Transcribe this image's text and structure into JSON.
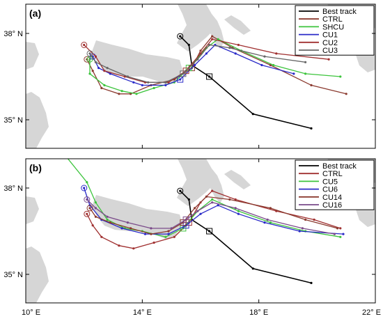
{
  "map": {
    "lon_range": [
      10,
      22
    ],
    "lat_range_approx": [
      33.3,
      39.6
    ],
    "x_ticks": [
      {
        "lon": 10,
        "label": "10° E"
      },
      {
        "lon": 14,
        "label": "14° E"
      },
      {
        "lon": 18,
        "label": "18° E"
      },
      {
        "lon": 22,
        "label": "22° E"
      }
    ],
    "y_ticks": [
      {
        "lat": 35,
        "label": "35° N"
      },
      {
        "lat": 38,
        "label": "38° N"
      }
    ],
    "land_color": "#d6d6d6"
  },
  "panels": [
    {
      "label": "(a)",
      "legend": [
        {
          "name": "Best track",
          "color": "#000000"
        },
        {
          "name": "CTRL",
          "color": "#8b3a2f"
        },
        {
          "name": "SHCU",
          "color": "#3cc43c"
        },
        {
          "name": "CU1",
          "color": "#2a2ac8"
        },
        {
          "name": "CU2",
          "color": "#a03030"
        },
        {
          "name": "CU3",
          "color": "#666666"
        }
      ],
      "tracks": [
        {
          "name": "Best track",
          "color": "#000000",
          "points": [
            [
              15.3,
              37.9
            ],
            [
              15.6,
              37.6
            ],
            [
              15.7,
              36.9
            ],
            [
              16.3,
              36.5
            ],
            [
              17.8,
              35.2
            ],
            [
              19.8,
              34.7
            ]
          ]
        },
        {
          "name": "CTRL",
          "color": "#8b3a2f",
          "points": [
            [
              12.1,
              37.1
            ],
            [
              12.3,
              36.7
            ],
            [
              12.6,
              36.1
            ],
            [
              13.2,
              35.9
            ],
            [
              13.6,
              35.9
            ],
            [
              14.3,
              36.2
            ],
            [
              15.1,
              36.4
            ],
            [
              15.7,
              36.8
            ],
            [
              16.0,
              37.4
            ],
            [
              16.4,
              37.9
            ],
            [
              17.1,
              37.5
            ],
            [
              18.4,
              36.9
            ],
            [
              19.8,
              36.2
            ],
            [
              21.0,
              35.9
            ]
          ]
        },
        {
          "name": "SHCU",
          "color": "#3cc43c",
          "points": [
            [
              12.2,
              37.1
            ],
            [
              12.2,
              36.6
            ],
            [
              12.7,
              36.2
            ],
            [
              13.3,
              36.0
            ],
            [
              13.8,
              35.9
            ],
            [
              14.4,
              36.1
            ],
            [
              15.1,
              36.3
            ],
            [
              15.6,
              36.8
            ],
            [
              16.2,
              37.5
            ],
            [
              16.6,
              37.8
            ],
            [
              17.4,
              37.4
            ],
            [
              18.5,
              36.9
            ],
            [
              19.6,
              36.6
            ],
            [
              20.8,
              36.5
            ]
          ]
        },
        {
          "name": "CU1",
          "color": "#2a2ac8",
          "points": [
            [
              12.3,
              37.2
            ],
            [
              12.5,
              36.8
            ],
            [
              12.9,
              36.6
            ],
            [
              13.7,
              36.3
            ],
            [
              14.0,
              36.2
            ],
            [
              14.8,
              36.2
            ],
            [
              15.3,
              36.4
            ],
            [
              15.8,
              36.9
            ],
            [
              16.2,
              37.3
            ],
            [
              16.5,
              37.6
            ],
            [
              17.2,
              37.3
            ],
            [
              18.1,
              36.9
            ],
            [
              19.2,
              36.6
            ]
          ]
        },
        {
          "name": "CU2",
          "color": "#a03030",
          "points": [
            [
              12.0,
              37.6
            ],
            [
              12.4,
              37.2
            ],
            [
              12.7,
              36.7
            ],
            [
              13.4,
              36.5
            ],
            [
              14.1,
              36.3
            ],
            [
              14.9,
              36.3
            ],
            [
              15.5,
              36.7
            ],
            [
              16.0,
              37.3
            ],
            [
              16.4,
              37.8
            ],
            [
              17.3,
              37.6
            ],
            [
              18.6,
              37.3
            ],
            [
              20.4,
              37.1
            ]
          ]
        },
        {
          "name": "CU3",
          "color": "#666666",
          "points": [
            [
              12.2,
              37.3
            ],
            [
              12.4,
              37.0
            ],
            [
              12.8,
              36.8
            ],
            [
              13.5,
              36.5
            ],
            [
              14.2,
              36.3
            ],
            [
              14.8,
              36.3
            ],
            [
              15.4,
              36.6
            ],
            [
              15.9,
              37.1
            ],
            [
              16.3,
              37.6
            ],
            [
              17.0,
              37.5
            ],
            [
              18.2,
              37.2
            ],
            [
              19.6,
              37.0
            ]
          ]
        }
      ]
    },
    {
      "label": "(b)",
      "legend": [
        {
          "name": "Best track",
          "color": "#000000"
        },
        {
          "name": "CTRL",
          "color": "#a03030"
        },
        {
          "name": "CU5",
          "color": "#3cc43c"
        },
        {
          "name": "CU6",
          "color": "#2a2ac8"
        },
        {
          "name": "CU14",
          "color": "#8b3a2f"
        },
        {
          "name": "CU16",
          "color": "#7a4a8a"
        }
      ],
      "tracks": [
        {
          "name": "Best track",
          "color": "#000000",
          "points": [
            [
              15.3,
              37.9
            ],
            [
              15.6,
              37.6
            ],
            [
              15.7,
              36.9
            ],
            [
              16.3,
              36.5
            ],
            [
              17.8,
              35.2
            ],
            [
              19.8,
              34.7
            ]
          ]
        },
        {
          "name": "CTRL",
          "color": "#a03030",
          "points": [
            [
              12.1,
              37.1
            ],
            [
              12.3,
              36.7
            ],
            [
              12.6,
              36.3
            ],
            [
              13.2,
              36.0
            ],
            [
              13.7,
              35.9
            ],
            [
              14.4,
              36.1
            ],
            [
              15.1,
              36.3
            ],
            [
              15.6,
              36.8
            ],
            [
              16.0,
              37.5
            ],
            [
              16.4,
              37.9
            ],
            [
              17.2,
              37.6
            ],
            [
              18.6,
              37.2
            ],
            [
              19.9,
              36.9
            ],
            [
              20.8,
              36.6
            ]
          ]
        },
        {
          "name": "CU5",
          "color": "#3cc43c",
          "points": [
            [
              11.3,
              39.2
            ],
            [
              12.1,
              38.2
            ],
            [
              12.4,
              37.5
            ],
            [
              12.8,
              36.9
            ],
            [
              13.4,
              36.6
            ],
            [
              14.0,
              36.5
            ],
            [
              14.8,
              36.3
            ],
            [
              15.4,
              36.6
            ],
            [
              15.9,
              37.2
            ],
            [
              16.4,
              37.6
            ],
            [
              17.3,
              37.2
            ],
            [
              18.4,
              36.8
            ],
            [
              19.6,
              36.5
            ],
            [
              20.8,
              36.3
            ]
          ]
        },
        {
          "name": "CU6",
          "color": "#2a2ac8",
          "points": [
            [
              12.0,
              38.0
            ],
            [
              12.2,
              37.4
            ],
            [
              12.6,
              36.9
            ],
            [
              13.3,
              36.6
            ],
            [
              14.1,
              36.4
            ],
            [
              14.9,
              36.4
            ],
            [
              15.5,
              36.7
            ],
            [
              16.0,
              37.1
            ],
            [
              16.6,
              37.4
            ],
            [
              17.3,
              37.1
            ],
            [
              18.2,
              36.8
            ],
            [
              19.4,
              36.5
            ],
            [
              20.9,
              36.4
            ]
          ]
        },
        {
          "name": "CU14",
          "color": "#8b3a2f",
          "points": [
            [
              12.2,
              37.3
            ],
            [
              12.4,
              37.0
            ],
            [
              12.9,
              36.8
            ],
            [
              13.6,
              36.6
            ],
            [
              14.3,
              36.4
            ],
            [
              14.9,
              36.5
            ],
            [
              15.4,
              36.8
            ],
            [
              15.8,
              37.3
            ],
            [
              16.2,
              37.7
            ],
            [
              17.0,
              37.6
            ],
            [
              18.4,
              37.3
            ],
            [
              19.6,
              36.9
            ],
            [
              20.7,
              36.6
            ]
          ]
        },
        {
          "name": "CU16",
          "color": "#7a4a8a",
          "points": [
            [
              12.1,
              37.6
            ],
            [
              12.4,
              37.3
            ],
            [
              12.8,
              37.0
            ],
            [
              13.5,
              36.8
            ],
            [
              14.3,
              36.6
            ],
            [
              15.0,
              36.6
            ],
            [
              15.5,
              36.9
            ],
            [
              15.9,
              37.2
            ],
            [
              16.4,
              37.5
            ],
            [
              17.2,
              37.3
            ],
            [
              18.3,
              36.9
            ],
            [
              19.5,
              36.6
            ],
            [
              20.6,
              36.4
            ]
          ]
        }
      ]
    }
  ]
}
